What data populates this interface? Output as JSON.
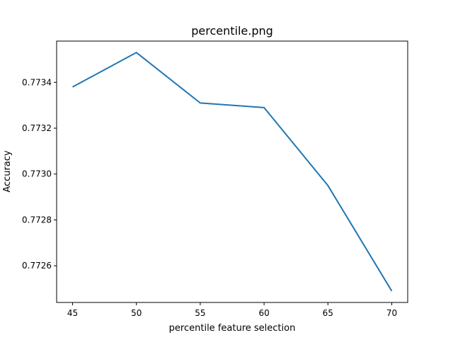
{
  "chart_data": {
    "type": "line",
    "title": "percentile.png",
    "xlabel": "percentile feature selection",
    "ylabel": "Accuracy",
    "x": [
      45,
      50,
      55,
      60,
      65,
      70
    ],
    "xticks": [
      45,
      50,
      55,
      60,
      65,
      70
    ],
    "xtick_labels": [
      "45",
      "50",
      "55",
      "60",
      "65",
      "70"
    ],
    "xlim": [
      43.75,
      71.25
    ],
    "yticks": [
      0.7726,
      0.7728,
      0.773,
      0.7732,
      0.7734
    ],
    "ytick_labels": [
      "0.7726",
      "0.7728",
      "0.7730",
      "0.7732",
      "0.7734"
    ],
    "ylim": [
      0.77244,
      0.77358
    ],
    "grid": false,
    "series": [
      {
        "color": "#1f77b4",
        "values": [
          0.77338,
          0.77353,
          0.77331,
          0.77329,
          0.77295,
          0.77249
        ]
      }
    ]
  }
}
